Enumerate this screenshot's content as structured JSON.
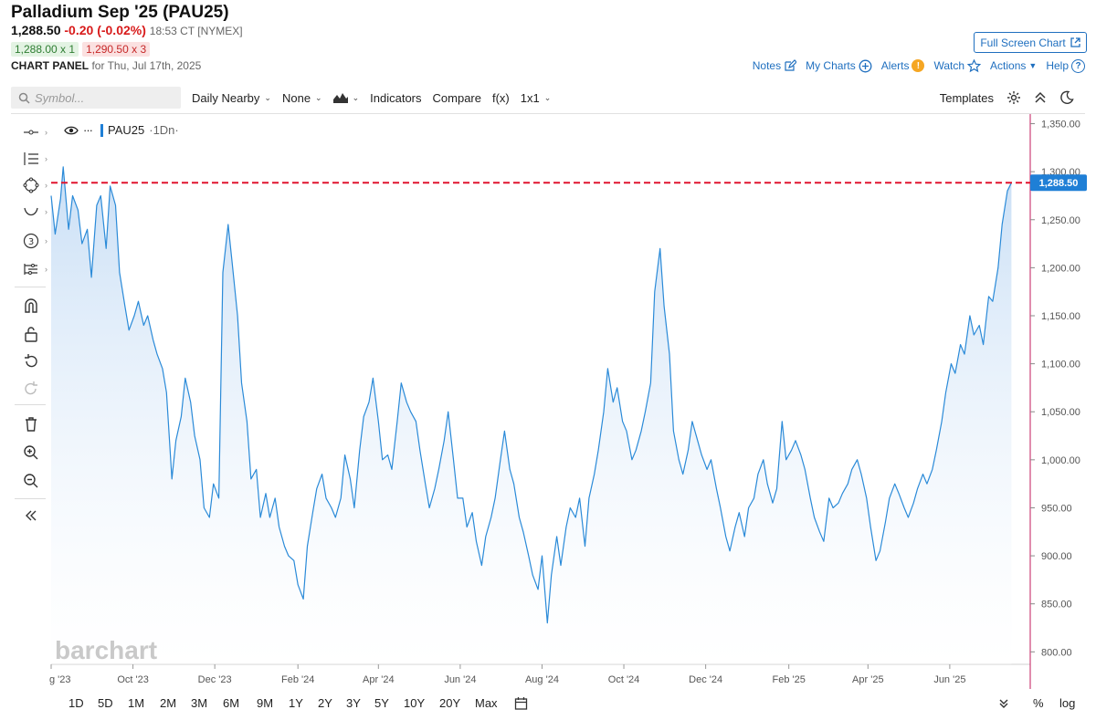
{
  "header": {
    "title": "Palladium Sep '25 (PAU25)",
    "last": "1,288.50",
    "change": "-0.20 (-0.02%)",
    "time": "18:53 CT [NYMEX]",
    "bid": "1,288.00 x 1",
    "ask": "1,290.50 x 3",
    "panel_label": "CHART PANEL",
    "panel_date": "for Thu, Jul 17th, 2025",
    "fullscreen_label": "Full Screen Chart",
    "links": {
      "notes": "Notes",
      "mycharts": "My Charts",
      "alerts": "Alerts",
      "alert_badge": "!",
      "watch": "Watch",
      "actions": "Actions",
      "help": "Help"
    }
  },
  "toolbar": {
    "search_placeholder": "Symbol...",
    "aggregation": "Daily Nearby",
    "none": "None",
    "indicators": "Indicators",
    "compare": "Compare",
    "fx": "f(x)",
    "layout": "1x1",
    "templates": "Templates"
  },
  "legend": {
    "symbol": "PAU25",
    "period": "·1Dn·"
  },
  "watermark": "barchart",
  "bottom": {
    "timeframes": [
      "1D",
      "5D",
      "1M",
      "2M",
      "3M",
      "6M",
      "9M",
      "1Y",
      "2Y",
      "3Y",
      "5Y",
      "10Y",
      "20Y",
      "Max"
    ],
    "percent": "%",
    "log": "log"
  },
  "colors": {
    "line": "#2a8ad8",
    "area_top": "#c6ddf5",
    "price_line": "#e0142e",
    "badge": "#1f7fd6",
    "axis_border": "#c2185b"
  },
  "chart_data": {
    "type": "area",
    "y_ticks": [
      "1,350.00",
      "1,300.00",
      "1,250.00",
      "1,200.00",
      "1,150.00",
      "1,100.00",
      "1,050.00",
      "1,000.00",
      "950.00",
      "900.00",
      "850.00",
      "800.00"
    ],
    "y_tick_values": [
      1350,
      1300,
      1250,
      1200,
      1150,
      1100,
      1050,
      1000,
      950,
      900,
      850,
      800
    ],
    "ylim": [
      787,
      1360
    ],
    "x_ticks": [
      "g '23",
      "Oct '23",
      "Dec '23",
      "Feb '24",
      "Apr '24",
      "Jun '24",
      "Aug '24",
      "Oct '24",
      "Dec '24",
      "Feb '25",
      "Apr '25",
      "Jun '25"
    ],
    "x_tick_dates": [
      "2023-08-01",
      "2023-10-01",
      "2023-12-01",
      "2024-02-01",
      "2024-04-01",
      "2024-06-01",
      "2024-08-01",
      "2024-10-01",
      "2024-12-01",
      "2025-02-01",
      "2025-04-01",
      "2025-06-01"
    ],
    "xlim": [
      "2023-08-01",
      "2025-07-31"
    ],
    "last_price": 1288.5,
    "last_price_label": "1,288.50",
    "series": [
      {
        "points": [
          [
            "2023-08-01",
            1275
          ],
          [
            "2023-08-04",
            1235
          ],
          [
            "2023-08-08",
            1272
          ],
          [
            "2023-08-10",
            1305
          ],
          [
            "2023-08-14",
            1240
          ],
          [
            "2023-08-17",
            1275
          ],
          [
            "2023-08-21",
            1260
          ],
          [
            "2023-08-24",
            1225
          ],
          [
            "2023-08-28",
            1240
          ],
          [
            "2023-08-31",
            1190
          ],
          [
            "2023-09-04",
            1265
          ],
          [
            "2023-09-07",
            1275
          ],
          [
            "2023-09-11",
            1220
          ],
          [
            "2023-09-14",
            1285
          ],
          [
            "2023-09-18",
            1265
          ],
          [
            "2023-09-21",
            1195
          ],
          [
            "2023-09-25",
            1160
          ],
          [
            "2023-09-28",
            1135
          ],
          [
            "2023-10-02",
            1150
          ],
          [
            "2023-10-05",
            1165
          ],
          [
            "2023-10-09",
            1140
          ],
          [
            "2023-10-12",
            1150
          ],
          [
            "2023-10-16",
            1125
          ],
          [
            "2023-10-19",
            1110
          ],
          [
            "2023-10-23",
            1095
          ],
          [
            "2023-10-26",
            1070
          ],
          [
            "2023-10-30",
            980
          ],
          [
            "2023-11-02",
            1020
          ],
          [
            "2023-11-06",
            1045
          ],
          [
            "2023-11-09",
            1085
          ],
          [
            "2023-11-13",
            1060
          ],
          [
            "2023-11-16",
            1025
          ],
          [
            "2023-11-20",
            1000
          ],
          [
            "2023-11-23",
            950
          ],
          [
            "2023-11-27",
            940
          ],
          [
            "2023-11-30",
            975
          ],
          [
            "2023-12-04",
            960
          ],
          [
            "2023-12-07",
            1195
          ],
          [
            "2023-12-11",
            1245
          ],
          [
            "2023-12-14",
            1205
          ],
          [
            "2023-12-18",
            1150
          ],
          [
            "2023-12-21",
            1080
          ],
          [
            "2023-12-25",
            1040
          ],
          [
            "2023-12-28",
            980
          ],
          [
            "2024-01-01",
            990
          ],
          [
            "2024-01-04",
            940
          ],
          [
            "2024-01-08",
            965
          ],
          [
            "2024-01-11",
            940
          ],
          [
            "2024-01-15",
            960
          ],
          [
            "2024-01-18",
            930
          ],
          [
            "2024-01-22",
            910
          ],
          [
            "2024-01-25",
            900
          ],
          [
            "2024-01-29",
            895
          ],
          [
            "2024-02-01",
            870
          ],
          [
            "2024-02-05",
            855
          ],
          [
            "2024-02-08",
            910
          ],
          [
            "2024-02-12",
            945
          ],
          [
            "2024-02-15",
            970
          ],
          [
            "2024-02-19",
            985
          ],
          [
            "2024-02-22",
            960
          ],
          [
            "2024-02-26",
            950
          ],
          [
            "2024-02-29",
            940
          ],
          [
            "2024-03-04",
            960
          ],
          [
            "2024-03-07",
            1005
          ],
          [
            "2024-03-11",
            980
          ],
          [
            "2024-03-14",
            950
          ],
          [
            "2024-03-18",
            1010
          ],
          [
            "2024-03-21",
            1045
          ],
          [
            "2024-03-25",
            1060
          ],
          [
            "2024-03-28",
            1085
          ],
          [
            "2024-04-01",
            1040
          ],
          [
            "2024-04-04",
            1000
          ],
          [
            "2024-04-08",
            1005
          ],
          [
            "2024-04-11",
            990
          ],
          [
            "2024-04-15",
            1040
          ],
          [
            "2024-04-18",
            1080
          ],
          [
            "2024-04-22",
            1060
          ],
          [
            "2024-04-25",
            1050
          ],
          [
            "2024-04-29",
            1040
          ],
          [
            "2024-05-02",
            1010
          ],
          [
            "2024-05-06",
            975
          ],
          [
            "2024-05-09",
            950
          ],
          [
            "2024-05-13",
            970
          ],
          [
            "2024-05-16",
            990
          ],
          [
            "2024-05-20",
            1020
          ],
          [
            "2024-05-23",
            1050
          ],
          [
            "2024-05-27",
            1000
          ],
          [
            "2024-05-30",
            960
          ],
          [
            "2024-06-03",
            960
          ],
          [
            "2024-06-06",
            930
          ],
          [
            "2024-06-10",
            945
          ],
          [
            "2024-06-13",
            915
          ],
          [
            "2024-06-17",
            890
          ],
          [
            "2024-06-20",
            920
          ],
          [
            "2024-06-24",
            940
          ],
          [
            "2024-06-27",
            960
          ],
          [
            "2024-07-01",
            1000
          ],
          [
            "2024-07-04",
            1030
          ],
          [
            "2024-07-08",
            990
          ],
          [
            "2024-07-11",
            975
          ],
          [
            "2024-07-15",
            940
          ],
          [
            "2024-07-18",
            925
          ],
          [
            "2024-07-22",
            900
          ],
          [
            "2024-07-25",
            880
          ],
          [
            "2024-07-29",
            865
          ],
          [
            "2024-08-01",
            900
          ],
          [
            "2024-08-05",
            830
          ],
          [
            "2024-08-08",
            880
          ],
          [
            "2024-08-12",
            920
          ],
          [
            "2024-08-15",
            890
          ],
          [
            "2024-08-19",
            930
          ],
          [
            "2024-08-22",
            950
          ],
          [
            "2024-08-26",
            940
          ],
          [
            "2024-08-29",
            960
          ],
          [
            "2024-09-02",
            910
          ],
          [
            "2024-09-05",
            960
          ],
          [
            "2024-09-09",
            985
          ],
          [
            "2024-09-12",
            1010
          ],
          [
            "2024-09-16",
            1050
          ],
          [
            "2024-09-19",
            1095
          ],
          [
            "2024-09-23",
            1060
          ],
          [
            "2024-09-26",
            1075
          ],
          [
            "2024-09-30",
            1040
          ],
          [
            "2024-10-03",
            1030
          ],
          [
            "2024-10-07",
            1000
          ],
          [
            "2024-10-10",
            1010
          ],
          [
            "2024-10-14",
            1030
          ],
          [
            "2024-10-17",
            1050
          ],
          [
            "2024-10-21",
            1080
          ],
          [
            "2024-10-24",
            1175
          ],
          [
            "2024-10-28",
            1220
          ],
          [
            "2024-10-31",
            1160
          ],
          [
            "2024-11-04",
            1110
          ],
          [
            "2024-11-07",
            1030
          ],
          [
            "2024-11-11",
            1000
          ],
          [
            "2024-11-14",
            985
          ],
          [
            "2024-11-18",
            1010
          ],
          [
            "2024-11-21",
            1040
          ],
          [
            "2024-11-25",
            1020
          ],
          [
            "2024-11-28",
            1005
          ],
          [
            "2024-12-02",
            990
          ],
          [
            "2024-12-05",
            1000
          ],
          [
            "2024-12-09",
            970
          ],
          [
            "2024-12-12",
            950
          ],
          [
            "2024-12-16",
            920
          ],
          [
            "2024-12-19",
            905
          ],
          [
            "2024-12-23",
            930
          ],
          [
            "2024-12-26",
            945
          ],
          [
            "2024-12-30",
            920
          ],
          [
            "2025-01-02",
            950
          ],
          [
            "2025-01-06",
            960
          ],
          [
            "2025-01-09",
            985
          ],
          [
            "2025-01-13",
            1000
          ],
          [
            "2025-01-16",
            975
          ],
          [
            "2025-01-20",
            955
          ],
          [
            "2025-01-23",
            970
          ],
          [
            "2025-01-27",
            1040
          ],
          [
            "2025-01-30",
            1000
          ],
          [
            "2025-02-03",
            1010
          ],
          [
            "2025-02-06",
            1020
          ],
          [
            "2025-02-10",
            1005
          ],
          [
            "2025-02-13",
            990
          ],
          [
            "2025-02-17",
            960
          ],
          [
            "2025-02-20",
            940
          ],
          [
            "2025-02-24",
            925
          ],
          [
            "2025-02-27",
            915
          ],
          [
            "2025-03-03",
            960
          ],
          [
            "2025-03-06",
            950
          ],
          [
            "2025-03-10",
            955
          ],
          [
            "2025-03-13",
            965
          ],
          [
            "2025-03-17",
            975
          ],
          [
            "2025-03-20",
            990
          ],
          [
            "2025-03-24",
            1000
          ],
          [
            "2025-03-27",
            985
          ],
          [
            "2025-03-31",
            960
          ],
          [
            "2025-04-03",
            930
          ],
          [
            "2025-04-07",
            895
          ],
          [
            "2025-04-10",
            905
          ],
          [
            "2025-04-14",
            935
          ],
          [
            "2025-04-17",
            960
          ],
          [
            "2025-04-21",
            975
          ],
          [
            "2025-04-24",
            965
          ],
          [
            "2025-04-28",
            950
          ],
          [
            "2025-05-01",
            940
          ],
          [
            "2025-05-05",
            955
          ],
          [
            "2025-05-08",
            970
          ],
          [
            "2025-05-12",
            985
          ],
          [
            "2025-05-15",
            975
          ],
          [
            "2025-05-19",
            990
          ],
          [
            "2025-05-22",
            1010
          ],
          [
            "2025-05-26",
            1040
          ],
          [
            "2025-05-29",
            1070
          ],
          [
            "2025-06-02",
            1100
          ],
          [
            "2025-06-05",
            1090
          ],
          [
            "2025-06-09",
            1120
          ],
          [
            "2025-06-12",
            1110
          ],
          [
            "2025-06-16",
            1150
          ],
          [
            "2025-06-19",
            1130
          ],
          [
            "2025-06-23",
            1140
          ],
          [
            "2025-06-26",
            1120
          ],
          [
            "2025-06-30",
            1170
          ],
          [
            "2025-07-03",
            1165
          ],
          [
            "2025-07-07",
            1200
          ],
          [
            "2025-07-10",
            1245
          ],
          [
            "2025-07-14",
            1280
          ],
          [
            "2025-07-17",
            1288.5
          ]
        ]
      }
    ]
  }
}
